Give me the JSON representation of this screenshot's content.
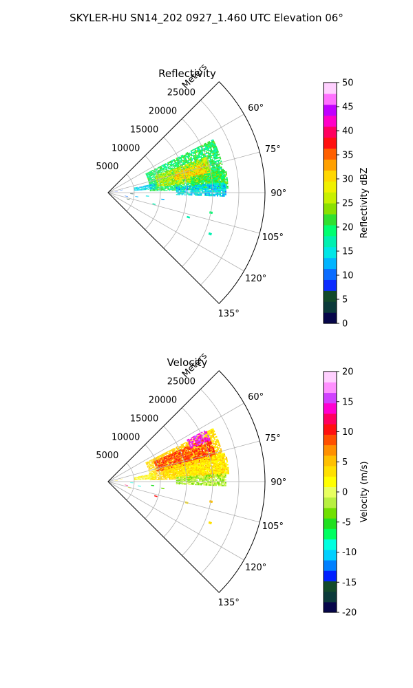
{
  "figure": {
    "title": "SKYLER-HU  SN14_202  0927_1.460 UTC Elevation 06°"
  },
  "chart_data": [
    {
      "type": "heatmap",
      "title": "Reflectivity",
      "range_label": "Meters",
      "range_ticks": [
        "5000",
        "10000",
        "15000",
        "20000",
        "25000"
      ],
      "range_values": [
        5000,
        10000,
        15000,
        20000,
        25000
      ],
      "azimuth_ticks": [
        "60°",
        "75°",
        "90°",
        "105°",
        "120°",
        "135°"
      ],
      "azimuth_values": [
        60,
        75,
        90,
        105,
        120,
        135
      ],
      "azimuth_range": [
        45,
        135
      ],
      "range_max": 30000,
      "grid": true,
      "colorbar": {
        "label": "Reflectivity dBZ",
        "min": 0,
        "max": 50,
        "ticks": [
          "0",
          "5",
          "10",
          "15",
          "20",
          "25",
          "30",
          "35",
          "40",
          "45",
          "50"
        ],
        "tick_values": [
          0,
          5,
          10,
          15,
          20,
          25,
          30,
          35,
          40,
          45,
          50
        ],
        "colors": [
          "#06064a",
          "#0b3a3a",
          "#124a2a",
          "#0c2cff",
          "#0a6cff",
          "#00b4ff",
          "#00e6e6",
          "#00f0b0",
          "#00ff70",
          "#30e030",
          "#8ae000",
          "#c8f000",
          "#f0f000",
          "#ffd700",
          "#ffa000",
          "#ff6000",
          "#ff1010",
          "#ff0060",
          "#ff00c8",
          "#c000ff",
          "#ff70ff",
          "#ffd0ff"
        ]
      },
      "echo_regions": [
        {
          "az": [
            63,
            88
          ],
          "r": [
            8000,
            22500
          ],
          "value": 20
        },
        {
          "az": [
            70,
            83
          ],
          "r": [
            9500,
            20000
          ],
          "value": 26
        },
        {
          "az": [
            73,
            80
          ],
          "r": [
            13000,
            19000
          ],
          "value": 31
        },
        {
          "az": [
            79,
            88
          ],
          "r": [
            16000,
            23000
          ],
          "value": 21
        },
        {
          "az": [
            85,
            92
          ],
          "r": [
            13000,
            22500
          ],
          "value": 14
        },
        {
          "az": [
            79,
            86
          ],
          "r": [
            5000,
            9000
          ],
          "value": 14
        }
      ],
      "echo_spots": [
        {
          "az": 93,
          "r": 4500,
          "value": 3
        },
        {
          "az": 98,
          "r": 5500,
          "value": 12
        },
        {
          "az": 101,
          "r": 3500,
          "value": 10
        },
        {
          "az": 108,
          "r": 4000,
          "value": 6
        },
        {
          "az": 95,
          "r": 7500,
          "value": 14
        },
        {
          "az": 97,
          "r": 10500,
          "value": 13
        },
        {
          "az": 107,
          "r": 16000,
          "value": 18
        },
        {
          "az": 112,
          "r": 21000,
          "value": 16
        },
        {
          "az": 101,
          "r": 20000,
          "value": 19
        },
        {
          "az": 104,
          "r": 9000,
          "value": 17
        },
        {
          "az": 79,
          "r": 2500,
          "value": 11
        },
        {
          "az": 83,
          "r": 1500,
          "value": 9
        }
      ]
    },
    {
      "type": "heatmap",
      "title": "Velocity",
      "range_label": "Meters",
      "range_ticks": [
        "5000",
        "10000",
        "15000",
        "20000",
        "25000"
      ],
      "range_values": [
        5000,
        10000,
        15000,
        20000,
        25000
      ],
      "azimuth_ticks": [
        "60°",
        "75°",
        "90°",
        "105°",
        "120°",
        "135°"
      ],
      "azimuth_values": [
        60,
        75,
        90,
        105,
        120,
        135
      ],
      "azimuth_range": [
        45,
        135
      ],
      "range_max": 30000,
      "grid": true,
      "colorbar": {
        "label": "Velocity (m/s)",
        "min": -20,
        "max": 20,
        "ticks": [
          "-20",
          "-15",
          "-10",
          "-5",
          "0",
          "5",
          "10",
          "15",
          "20"
        ],
        "tick_values": [
          -20,
          -15,
          -10,
          -5,
          0,
          5,
          10,
          15,
          20
        ],
        "colors": [
          "#06064a",
          "#0b3a3a",
          "#124a2a",
          "#0020ff",
          "#0080ff",
          "#00d0ff",
          "#00ffe0",
          "#00ff60",
          "#20e020",
          "#70e000",
          "#b8f040",
          "#e8ff60",
          "#ffff00",
          "#ffe000",
          "#ffc000",
          "#ff9000",
          "#ff5000",
          "#ff1010",
          "#ff0060",
          "#ff00d0",
          "#d040ff",
          "#ff90ff",
          "#ffd0ff"
        ]
      },
      "echo_regions": [
        {
          "az": [
            63,
            88
          ],
          "r": [
            8000,
            22500
          ],
          "value": 4
        },
        {
          "az": [
            66,
            78
          ],
          "r": [
            9500,
            21000
          ],
          "value": 9
        },
        {
          "az": [
            76,
            86
          ],
          "r": [
            11000,
            23000
          ],
          "value": 3
        },
        {
          "az": [
            62,
            68
          ],
          "r": [
            17000,
            21000
          ],
          "value": 15
        },
        {
          "az": [
            86,
            92
          ],
          "r": [
            13000,
            22500
          ],
          "value": -2
        },
        {
          "az": [
            80,
            87
          ],
          "r": [
            5000,
            9000
          ],
          "value": 2
        }
      ],
      "echo_spots": [
        {
          "az": 93,
          "r": 4500,
          "value": -8
        },
        {
          "az": 98,
          "r": 6000,
          "value": -9
        },
        {
          "az": 101,
          "r": 3500,
          "value": 12
        },
        {
          "az": 106,
          "r": 4200,
          "value": 2
        },
        {
          "az": 95,
          "r": 8500,
          "value": -5
        },
        {
          "az": 97,
          "r": 10500,
          "value": -3
        },
        {
          "az": 105,
          "r": 15500,
          "value": 4
        },
        {
          "az": 112,
          "r": 21000,
          "value": 3
        },
        {
          "az": 101,
          "r": 20000,
          "value": 5
        },
        {
          "az": 107,
          "r": 9500,
          "value": 11
        },
        {
          "az": 79,
          "r": 2500,
          "value": 4
        },
        {
          "az": 84,
          "r": 1500,
          "value": 3
        }
      ]
    }
  ]
}
